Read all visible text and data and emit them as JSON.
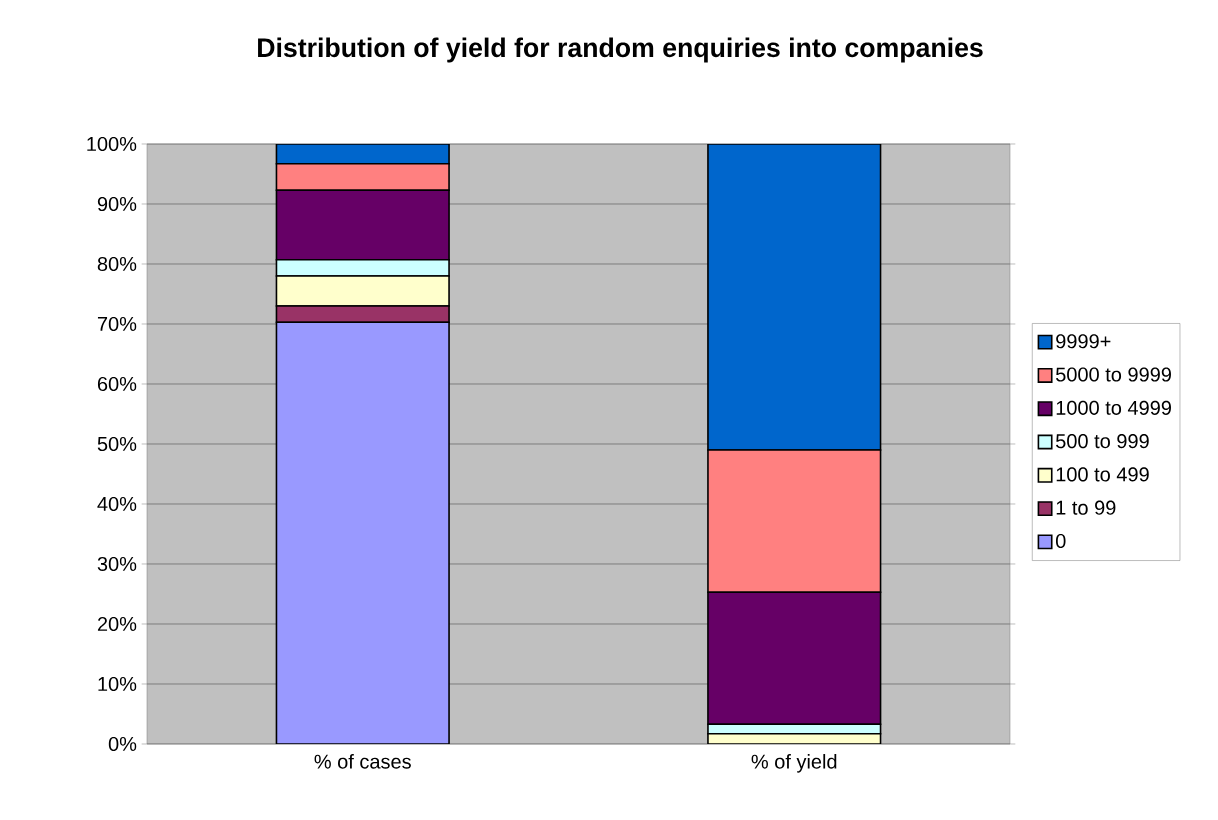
{
  "chart_data": {
    "type": "bar",
    "title": "Distribution of yield for random enquiries into companies",
    "categories": [
      "% of cases",
      "% of yield"
    ],
    "stacked": true,
    "series": [
      {
        "name": "0",
        "color": "#9999ff",
        "values": [
          70.3,
          0
        ]
      },
      {
        "name": "1 to 99",
        "color": "#993366",
        "values": [
          2.7,
          0
        ]
      },
      {
        "name": "100 to 499",
        "color": "#ffffcc",
        "values": [
          5.0,
          1.7
        ]
      },
      {
        "name": "500 to 999",
        "color": "#ccffff",
        "values": [
          2.7,
          1.6
        ]
      },
      {
        "name": "1000 to 4999",
        "color": "#660066",
        "values": [
          11.6,
          22.0
        ]
      },
      {
        "name": "5000 to 9999",
        "color": "#ff8080",
        "values": [
          4.4,
          23.7
        ]
      },
      {
        "name": "9999+",
        "color": "#0066cc",
        "values": [
          3.3,
          51.0
        ]
      }
    ],
    "ylim": [
      0,
      100
    ],
    "yticks": [
      {
        "value": 0,
        "label": "0%"
      },
      {
        "value": 10,
        "label": "10%"
      },
      {
        "value": 20,
        "label": "20%"
      },
      {
        "value": 30,
        "label": "30%"
      },
      {
        "value": 40,
        "label": "40%"
      },
      {
        "value": 50,
        "label": "50%"
      },
      {
        "value": 60,
        "label": "60%"
      },
      {
        "value": 70,
        "label": "70%"
      },
      {
        "value": 80,
        "label": "80%"
      },
      {
        "value": 90,
        "label": "90%"
      },
      {
        "value": 100,
        "label": "100%"
      }
    ],
    "grid": "y",
    "legend": "right"
  }
}
